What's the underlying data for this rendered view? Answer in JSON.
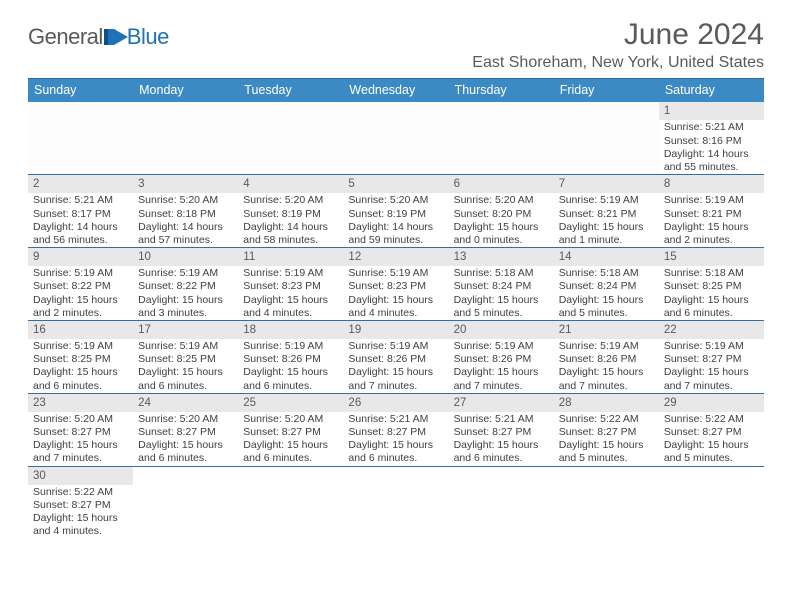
{
  "brand": {
    "name_a": "General",
    "name_b": "Blue",
    "logo_color": "#1d72b8"
  },
  "title": "June 2024",
  "location": "East Shoreham, New York, United States",
  "colors": {
    "header_bg": "#3b8ac4",
    "header_fg": "#ffffff",
    "border": "#2f6fa8",
    "daynum_bg": "#e8e8e8",
    "text": "#404040"
  },
  "weekdays": [
    "Sunday",
    "Monday",
    "Tuesday",
    "Wednesday",
    "Thursday",
    "Friday",
    "Saturday"
  ],
  "weeks": [
    [
      null,
      null,
      null,
      null,
      null,
      null,
      {
        "n": "1",
        "sr": "Sunrise: 5:21 AM",
        "ss": "Sunset: 8:16 PM",
        "dl1": "Daylight: 14 hours",
        "dl2": "and 55 minutes."
      }
    ],
    [
      {
        "n": "2",
        "sr": "Sunrise: 5:21 AM",
        "ss": "Sunset: 8:17 PM",
        "dl1": "Daylight: 14 hours",
        "dl2": "and 56 minutes."
      },
      {
        "n": "3",
        "sr": "Sunrise: 5:20 AM",
        "ss": "Sunset: 8:18 PM",
        "dl1": "Daylight: 14 hours",
        "dl2": "and 57 minutes."
      },
      {
        "n": "4",
        "sr": "Sunrise: 5:20 AM",
        "ss": "Sunset: 8:19 PM",
        "dl1": "Daylight: 14 hours",
        "dl2": "and 58 minutes."
      },
      {
        "n": "5",
        "sr": "Sunrise: 5:20 AM",
        "ss": "Sunset: 8:19 PM",
        "dl1": "Daylight: 14 hours",
        "dl2": "and 59 minutes."
      },
      {
        "n": "6",
        "sr": "Sunrise: 5:20 AM",
        "ss": "Sunset: 8:20 PM",
        "dl1": "Daylight: 15 hours",
        "dl2": "and 0 minutes."
      },
      {
        "n": "7",
        "sr": "Sunrise: 5:19 AM",
        "ss": "Sunset: 8:21 PM",
        "dl1": "Daylight: 15 hours",
        "dl2": "and 1 minute."
      },
      {
        "n": "8",
        "sr": "Sunrise: 5:19 AM",
        "ss": "Sunset: 8:21 PM",
        "dl1": "Daylight: 15 hours",
        "dl2": "and 2 minutes."
      }
    ],
    [
      {
        "n": "9",
        "sr": "Sunrise: 5:19 AM",
        "ss": "Sunset: 8:22 PM",
        "dl1": "Daylight: 15 hours",
        "dl2": "and 2 minutes."
      },
      {
        "n": "10",
        "sr": "Sunrise: 5:19 AM",
        "ss": "Sunset: 8:22 PM",
        "dl1": "Daylight: 15 hours",
        "dl2": "and 3 minutes."
      },
      {
        "n": "11",
        "sr": "Sunrise: 5:19 AM",
        "ss": "Sunset: 8:23 PM",
        "dl1": "Daylight: 15 hours",
        "dl2": "and 4 minutes."
      },
      {
        "n": "12",
        "sr": "Sunrise: 5:19 AM",
        "ss": "Sunset: 8:23 PM",
        "dl1": "Daylight: 15 hours",
        "dl2": "and 4 minutes."
      },
      {
        "n": "13",
        "sr": "Sunrise: 5:18 AM",
        "ss": "Sunset: 8:24 PM",
        "dl1": "Daylight: 15 hours",
        "dl2": "and 5 minutes."
      },
      {
        "n": "14",
        "sr": "Sunrise: 5:18 AM",
        "ss": "Sunset: 8:24 PM",
        "dl1": "Daylight: 15 hours",
        "dl2": "and 5 minutes."
      },
      {
        "n": "15",
        "sr": "Sunrise: 5:18 AM",
        "ss": "Sunset: 8:25 PM",
        "dl1": "Daylight: 15 hours",
        "dl2": "and 6 minutes."
      }
    ],
    [
      {
        "n": "16",
        "sr": "Sunrise: 5:19 AM",
        "ss": "Sunset: 8:25 PM",
        "dl1": "Daylight: 15 hours",
        "dl2": "and 6 minutes."
      },
      {
        "n": "17",
        "sr": "Sunrise: 5:19 AM",
        "ss": "Sunset: 8:25 PM",
        "dl1": "Daylight: 15 hours",
        "dl2": "and 6 minutes."
      },
      {
        "n": "18",
        "sr": "Sunrise: 5:19 AM",
        "ss": "Sunset: 8:26 PM",
        "dl1": "Daylight: 15 hours",
        "dl2": "and 6 minutes."
      },
      {
        "n": "19",
        "sr": "Sunrise: 5:19 AM",
        "ss": "Sunset: 8:26 PM",
        "dl1": "Daylight: 15 hours",
        "dl2": "and 7 minutes."
      },
      {
        "n": "20",
        "sr": "Sunrise: 5:19 AM",
        "ss": "Sunset: 8:26 PM",
        "dl1": "Daylight: 15 hours",
        "dl2": "and 7 minutes."
      },
      {
        "n": "21",
        "sr": "Sunrise: 5:19 AM",
        "ss": "Sunset: 8:26 PM",
        "dl1": "Daylight: 15 hours",
        "dl2": "and 7 minutes."
      },
      {
        "n": "22",
        "sr": "Sunrise: 5:19 AM",
        "ss": "Sunset: 8:27 PM",
        "dl1": "Daylight: 15 hours",
        "dl2": "and 7 minutes."
      }
    ],
    [
      {
        "n": "23",
        "sr": "Sunrise: 5:20 AM",
        "ss": "Sunset: 8:27 PM",
        "dl1": "Daylight: 15 hours",
        "dl2": "and 7 minutes."
      },
      {
        "n": "24",
        "sr": "Sunrise: 5:20 AM",
        "ss": "Sunset: 8:27 PM",
        "dl1": "Daylight: 15 hours",
        "dl2": "and 6 minutes."
      },
      {
        "n": "25",
        "sr": "Sunrise: 5:20 AM",
        "ss": "Sunset: 8:27 PM",
        "dl1": "Daylight: 15 hours",
        "dl2": "and 6 minutes."
      },
      {
        "n": "26",
        "sr": "Sunrise: 5:21 AM",
        "ss": "Sunset: 8:27 PM",
        "dl1": "Daylight: 15 hours",
        "dl2": "and 6 minutes."
      },
      {
        "n": "27",
        "sr": "Sunrise: 5:21 AM",
        "ss": "Sunset: 8:27 PM",
        "dl1": "Daylight: 15 hours",
        "dl2": "and 6 minutes."
      },
      {
        "n": "28",
        "sr": "Sunrise: 5:22 AM",
        "ss": "Sunset: 8:27 PM",
        "dl1": "Daylight: 15 hours",
        "dl2": "and 5 minutes."
      },
      {
        "n": "29",
        "sr": "Sunrise: 5:22 AM",
        "ss": "Sunset: 8:27 PM",
        "dl1": "Daylight: 15 hours",
        "dl2": "and 5 minutes."
      }
    ],
    [
      {
        "n": "30",
        "sr": "Sunrise: 5:22 AM",
        "ss": "Sunset: 8:27 PM",
        "dl1": "Daylight: 15 hours",
        "dl2": "and 4 minutes."
      },
      null,
      null,
      null,
      null,
      null,
      null
    ]
  ]
}
